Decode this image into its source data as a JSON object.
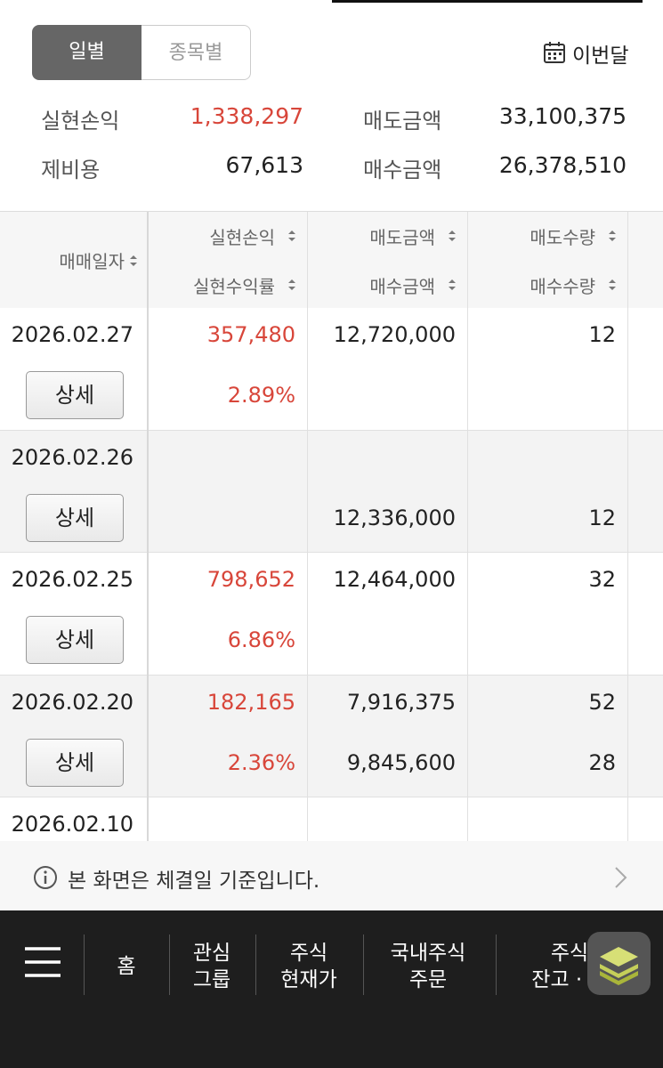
{
  "tabs": [
    "일별",
    "종목별"
  ],
  "period": "이번달",
  "summary": [
    {
      "label": "실현손익",
      "value": "1,338,297"
    },
    {
      "label": "매도금액",
      "value": "33,100,375"
    },
    {
      "label": "제비용",
      "value": "67,613"
    },
    {
      "label": "매수금액",
      "value": "26,378,510"
    }
  ],
  "table": {
    "headers": {
      "date": "매매일자",
      "col1": [
        "실현손익",
        "실현수익률"
      ],
      "col2": [
        "매도금액",
        "매수금액"
      ],
      "col3": [
        "매도수량",
        "매수수량"
      ]
    },
    "detail_button": "상세",
    "rows": [
      {
        "date": "2026.02.27",
        "profit": "357,480",
        "rate": "2.89%",
        "sell_amount": "12,720,000",
        "sell_qty": "12"
      },
      {
        "date": "2026.02.26",
        "buy_amount": "12,336,000",
        "buy_qty": "12"
      },
      {
        "date": "2026.02.25",
        "profit": "798,652",
        "rate": "6.86%",
        "sell_amount": "12,464,000",
        "sell_qty": "32"
      },
      {
        "date": "2026.02.20",
        "profit": "182,165",
        "rate": "2.36%",
        "sell_amount": "7,916,375",
        "buy_amount": "9,845,600",
        "sell_qty": "52",
        "buy_qty": "28"
      },
      {
        "date": "2026.02.10"
      }
    ]
  },
  "notice": "본 화면은 체결일 기준입니다.",
  "nav": [
    [
      "홈"
    ],
    [
      "관심",
      "그룹"
    ],
    [
      "주식",
      "현재가"
    ],
    [
      "국내주식",
      "주문"
    ],
    [
      "주식",
      "잔고 · 손"
    ]
  ]
}
